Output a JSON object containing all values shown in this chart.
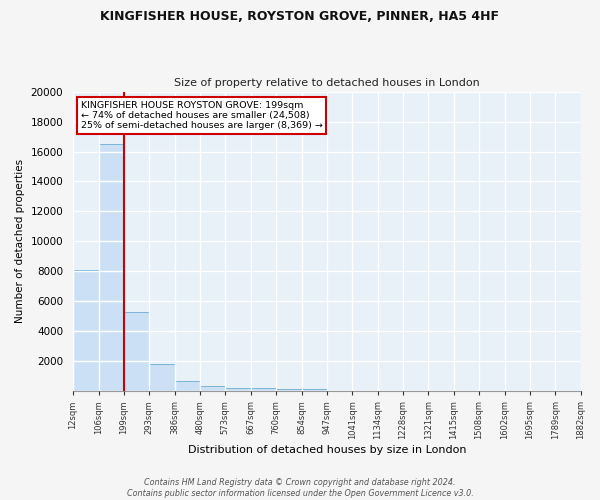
{
  "title1": "KINGFISHER HOUSE, ROYSTON GROVE, PINNER, HA5 4HF",
  "title2": "Size of property relative to detached houses in London",
  "xlabel": "Distribution of detached houses by size in London",
  "ylabel": "Number of detached properties",
  "bar_edges": [
    12,
    106,
    199,
    293,
    386,
    480,
    573,
    667,
    760,
    854,
    947,
    1041,
    1134,
    1228,
    1321,
    1415,
    1508,
    1602,
    1695,
    1789,
    1882
  ],
  "bar_heights": [
    8100,
    16500,
    5300,
    1850,
    700,
    320,
    220,
    200,
    160,
    130,
    0,
    0,
    0,
    0,
    0,
    0,
    0,
    0,
    0,
    0
  ],
  "tick_labels": [
    "12sqm",
    "106sqm",
    "199sqm",
    "293sqm",
    "386sqm",
    "480sqm",
    "573sqm",
    "667sqm",
    "760sqm",
    "854sqm",
    "947sqm",
    "1041sqm",
    "1134sqm",
    "1228sqm",
    "1321sqm",
    "1415sqm",
    "1508sqm",
    "1602sqm",
    "1695sqm",
    "1789sqm",
    "1882sqm"
  ],
  "property_line_x": 199,
  "annotation_line1": "KINGFISHER HOUSE ROYSTON GROVE: 199sqm",
  "annotation_line2": "← 74% of detached houses are smaller (24,508)",
  "annotation_line3": "25% of semi-detached houses are larger (8,369) →",
  "bar_fill_color": "#cce0f5",
  "bar_edge_color": "#7ab4d8",
  "redline_color": "#cc0000",
  "annotation_box_color": "#ffffff",
  "annotation_box_edge": "#cc0000",
  "bg_color": "#e8f0f8",
  "grid_color": "#ffffff",
  "fig_bg_color": "#f5f5f5",
  "footer_text": "Contains HM Land Registry data © Crown copyright and database right 2024.\nContains public sector information licensed under the Open Government Licence v3.0.",
  "ylim": [
    0,
    20000
  ],
  "yticks": [
    0,
    2000,
    4000,
    6000,
    8000,
    10000,
    12000,
    14000,
    16000,
    18000,
    20000
  ]
}
